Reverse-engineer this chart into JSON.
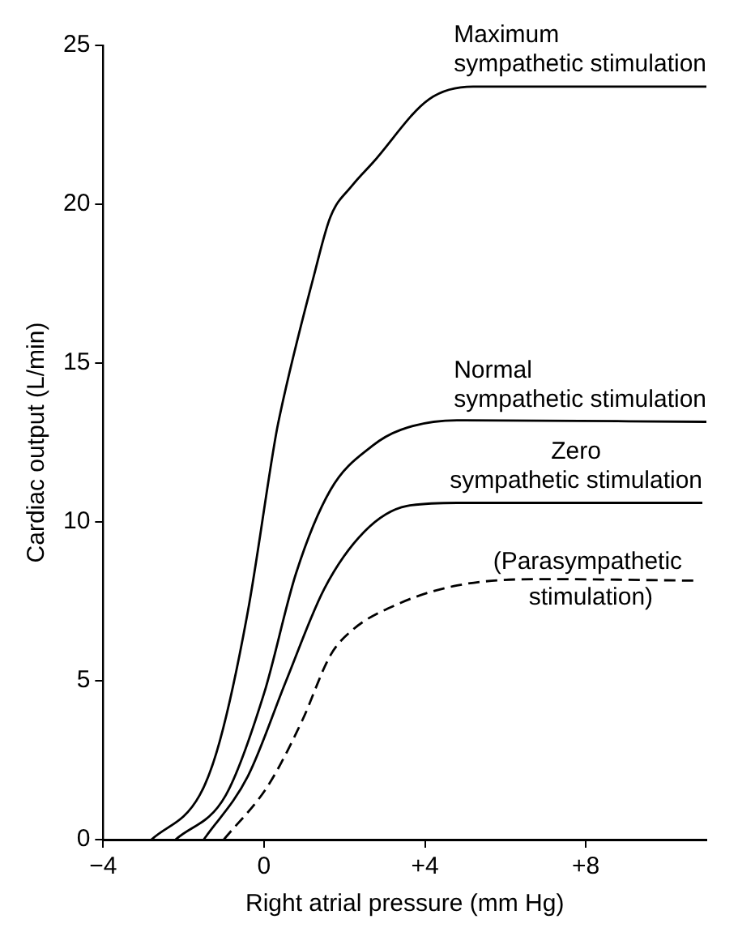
{
  "chart_data": {
    "type": "line",
    "xlabel": "Right atrial pressure (mm Hg)",
    "ylabel": "Cardiac output (L/min)",
    "xlim": [
      -4,
      11
    ],
    "xticks": [
      {
        "value": -4,
        "label": "−4"
      },
      0,
      {
        "value": 4,
        "label": "+4"
      },
      {
        "value": 8,
        "label": "+8"
      }
    ],
    "ylim": [
      0,
      25
    ],
    "yticks": [
      0,
      5,
      10,
      15,
      20,
      25
    ],
    "grid": false,
    "legend": false,
    "marker": "none",
    "series": [
      {
        "name": "Maximum sympathetic stimulation",
        "color": "#000000",
        "line_style": "solid",
        "x": [
          -2.8,
          -1.6,
          -1.1,
          -0.4,
          0.25,
          0.35,
          1.25,
          1.65,
          2.2,
          2.7,
          4.1,
          5.2,
          11
        ],
        "values": [
          0,
          1.4,
          3.1,
          7.2,
          12.4,
          13.1,
          17.8,
          19.6,
          20.6,
          21.3,
          23.3,
          23.7,
          23.7
        ]
      },
      {
        "name": "Normal sympathetic stimulation",
        "color": "#000000",
        "line_style": "solid",
        "x": [
          -2.2,
          -0.95,
          0,
          0.8,
          1.65,
          2.7,
          3.4,
          4.8,
          11
        ],
        "values": [
          0,
          1.4,
          4.6,
          8.4,
          11,
          12.4,
          12.9,
          13.2,
          13.15
        ]
      },
      {
        "name": "Zero sympathetic stimulation",
        "color": "#000000",
        "line_style": "solid",
        "x": [
          -1.5,
          -0.4,
          0.55,
          1.5,
          2.5,
          3.55,
          4.8,
          10.9
        ],
        "values": [
          0,
          2,
          5,
          7.9,
          9.7,
          10.5,
          10.6,
          10.6
        ]
      },
      {
        "name": "(Parasympathetic stimulation)",
        "color": "#000000",
        "line_style": "dashed",
        "x": [
          -1,
          0.1,
          0.95,
          1.65,
          2.2,
          3.3,
          4.8,
          6.9,
          10.8
        ],
        "values": [
          0,
          1.7,
          3.75,
          5.8,
          6.6,
          7.4,
          8,
          8.2,
          8.15
        ]
      }
    ]
  }
}
